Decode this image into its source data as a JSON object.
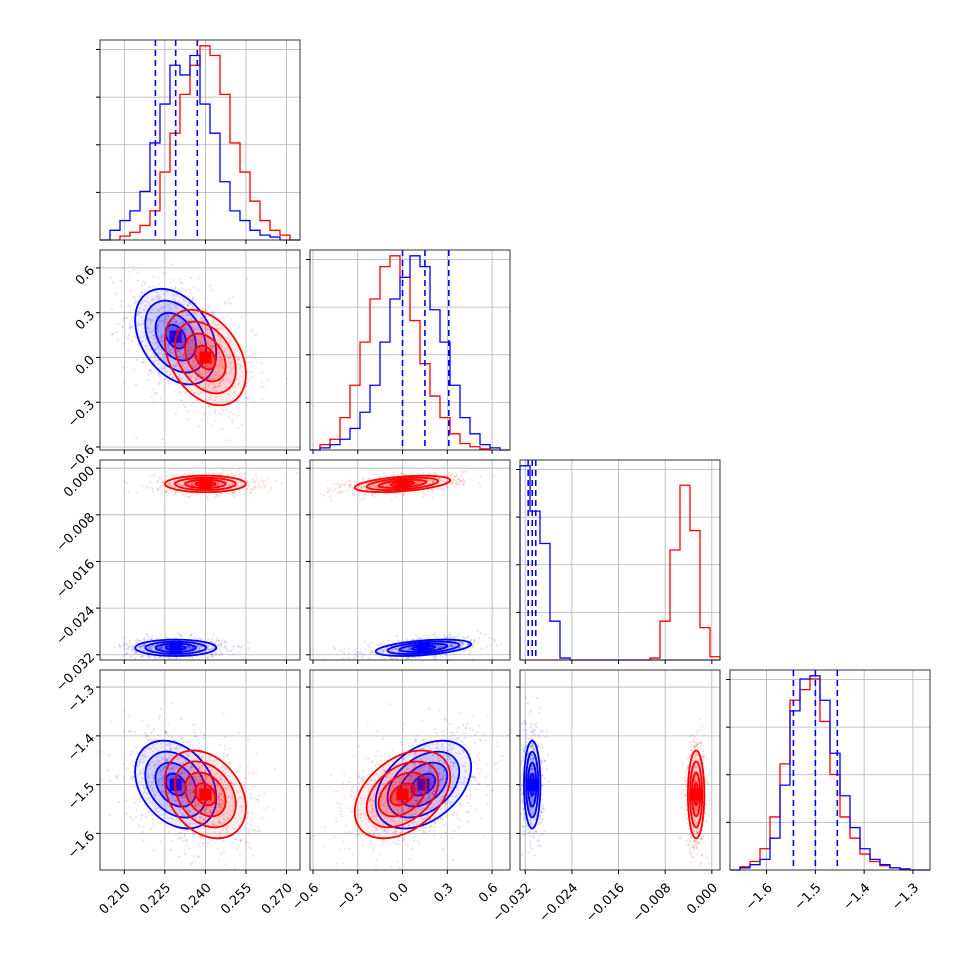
{
  "chart_data": {
    "type": "corner",
    "grid": true,
    "colors": {
      "series_a": "#0000ff",
      "series_b": "#ff0000"
    },
    "parameters": [
      {
        "range": [
          0.201,
          0.275
        ],
        "ticks": [
          "0.210",
          "0.225",
          "0.240",
          "0.255",
          "0.270"
        ],
        "quantiles_series_a": [
          0.2215,
          0.229,
          0.237
        ]
      },
      {
        "range": [
          -0.62,
          0.72
        ],
        "ticks": [
          "−0.6",
          "−0.3",
          "0.0",
          "0.3",
          "0.6"
        ],
        "quantiles_series_a": [
          0.0,
          0.15,
          0.31
        ]
      },
      {
        "range": [
          -0.0329,
          0.0014
        ],
        "ticks": [
          "−0.032",
          "−0.024",
          "−0.016",
          "−0.008",
          "0.000"
        ],
        "quantiles_series_a": [
          -0.0315,
          -0.0308,
          -0.0302
        ]
      },
      {
        "range": [
          -1.675,
          -1.265
        ],
        "ticks": [
          "−1.6",
          "−1.5",
          "−1.4",
          "−1.3"
        ],
        "quantiles_series_a": [
          -1.545,
          -1.5,
          -1.455
        ]
      }
    ],
    "ylabel_ticks_row2": [
      "0.6",
      "0.3",
      "0.0",
      "−0.3",
      "−0.6"
    ],
    "ylabel_ticks_row3": [
      "0.000",
      "−0.008",
      "−0.016",
      "−0.024",
      "−0.032"
    ],
    "ylabel_ticks_row4": [
      "−1.3",
      "−1.4",
      "−1.5",
      "−1.6"
    ],
    "series": [
      {
        "key": "series_a",
        "mean": [
          0.229,
          0.14,
          -0.0308,
          -1.5
        ],
        "sd": [
          0.0075,
          0.16,
          0.0007,
          0.045
        ]
      },
      {
        "key": "series_b",
        "mean": [
          0.24,
          0.0,
          -0.0027,
          -1.52
        ],
        "sd": [
          0.0075,
          0.16,
          0.0007,
          0.045
        ]
      }
    ],
    "histograms": {
      "p0_series_a": [
        0,
        1,
        2,
        3,
        5,
        10,
        14,
        18,
        17,
        19,
        14,
        11,
        6,
        3,
        2,
        1,
        0.5,
        0.3,
        0,
        0
      ],
      "p0_series_b": [
        0,
        0,
        0.4,
        0.8,
        1.5,
        3,
        7,
        11,
        15,
        18,
        20,
        19,
        15,
        10,
        7,
        4,
        2,
        1,
        0.5,
        0
      ],
      "p1_series_a": [
        0,
        0.2,
        0.5,
        1,
        2,
        3.5,
        6,
        10,
        14,
        16,
        18,
        17,
        13,
        10,
        6,
        3,
        1.5,
        0.5,
        0.2,
        0
      ],
      "p1_series_b": [
        0,
        0.5,
        1,
        3,
        6,
        10,
        14,
        17,
        18,
        16,
        12,
        8,
        5,
        3,
        1.5,
        0.6,
        0.3,
        0.1,
        0,
        0
      ],
      "p2_series_a": [
        30,
        23,
        18,
        6,
        0.3,
        0,
        0,
        0,
        0,
        0,
        0,
        0,
        0,
        0,
        0,
        0,
        0,
        0,
        0,
        0
      ],
      "p2_series_b": [
        0,
        0,
        0,
        0,
        0,
        0,
        0,
        0,
        0,
        0,
        0,
        0,
        0,
        0.3,
        6,
        17,
        27,
        20,
        5,
        0.5
      ],
      "p3_series_a": [
        0,
        0.2,
        0.5,
        1,
        3,
        8,
        15,
        18,
        18.3,
        16,
        11,
        7,
        4,
        2,
        1,
        0.5,
        0.2,
        0.1,
        0,
        0
      ],
      "p3_series_b": [
        0,
        0.3,
        0.8,
        2,
        5,
        10,
        16,
        17,
        18,
        14,
        9,
        5,
        3,
        1.5,
        0.8,
        0.4,
        0.2,
        0,
        0,
        0
      ]
    }
  }
}
